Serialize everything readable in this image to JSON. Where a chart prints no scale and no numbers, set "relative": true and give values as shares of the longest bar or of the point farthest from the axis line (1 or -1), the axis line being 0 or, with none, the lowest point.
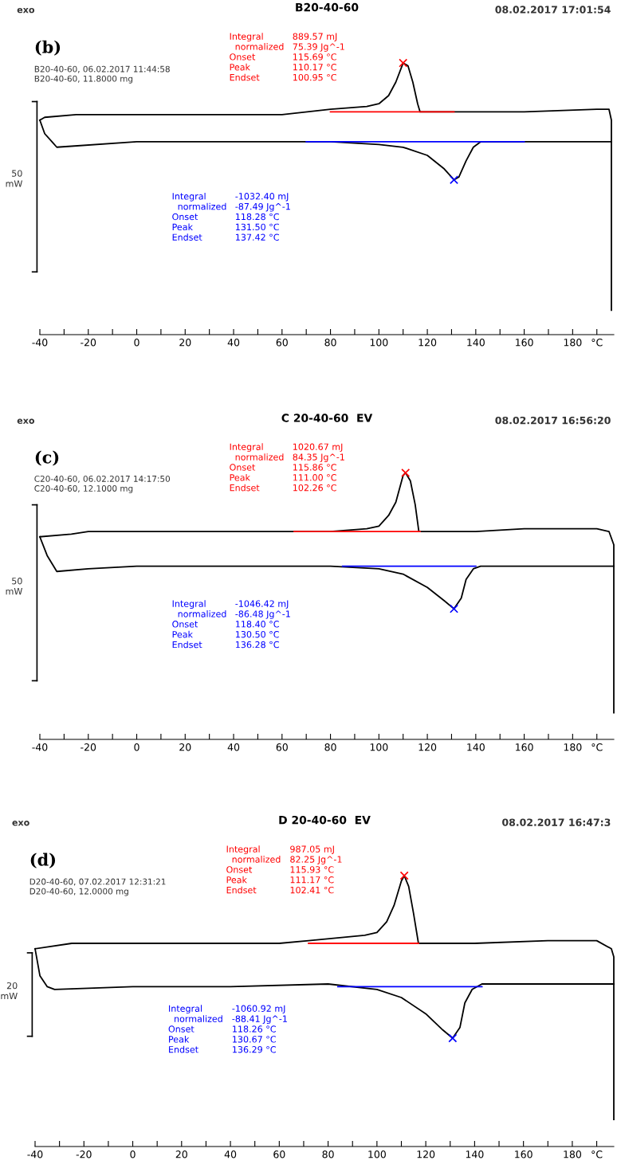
{
  "chart_data": [
    {
      "type": "line",
      "title": "B20-40-60",
      "subtitle": "(b)",
      "relative": true,
      "legend": false,
      "grid": false,
      "xlim": [
        -40,
        197
      ],
      "xticks": [
        -40,
        {
          "value": -30,
          "label": null
        },
        -20,
        {
          "value": -10,
          "label": null
        },
        0,
        {
          "value": 10,
          "label": null
        },
        20,
        {
          "value": 30,
          "label": null
        },
        40,
        {
          "value": 50,
          "label": null
        },
        60,
        {
          "value": 70,
          "label": null
        },
        80,
        {
          "value": 90,
          "label": null
        },
        100,
        {
          "value": 110,
          "label": null
        },
        120,
        {
          "value": 130,
          "label": null
        },
        140,
        {
          "value": 150,
          "label": null
        },
        160,
        {
          "value": 170,
          "label": null
        },
        180,
        {
          "value": 190,
          "label": "°C"
        }
      ],
      "annotations": [
        "exo",
        "08.02.2017 17:01:54",
        "B20-40-60, 06.02.2017 11:44:58\nB20-40-60, 11.8000 mg",
        "Integral\n  normalized\nOnset\nPeak\nEndset",
        "889.57 mJ\n75.39 Jg^-1\n115.69 °C\n110.17 °C\n100.95 °C",
        "Integral\n  normalized\nOnset\nPeak\nEndset",
        "-1032.40 mJ\n-87.49 Jg^-1\n118.28 °C\n131.50 °C\n137.42 °C",
        "50\nmW"
      ],
      "series": [
        {
          "color": "#000000",
          "x": [
            -40,
            -38,
            -25,
            0,
            40,
            60,
            80,
            95,
            100,
            104,
            107,
            110,
            112,
            114,
            116,
            117,
            130,
            160,
            190,
            195,
            196,
            196
          ],
          "values": [
            0.79,
            0.8,
            0.81,
            0.81,
            0.81,
            0.81,
            0.83,
            0.84,
            0.85,
            0.88,
            0.93,
            1.0,
            0.99,
            0.93,
            0.85,
            0.82,
            0.82,
            0.82,
            0.83,
            0.83,
            0.79,
            0.09
          ]
        },
        {
          "color": "#000000",
          "x": [
            -40,
            -38,
            -35,
            -33,
            0,
            40,
            80,
            100,
            110,
            120,
            127,
            131,
            133,
            136,
            139,
            142,
            196
          ],
          "values": [
            0.79,
            0.74,
            0.71,
            0.69,
            0.71,
            0.71,
            0.71,
            0.7,
            0.69,
            0.66,
            0.61,
            0.57,
            0.58,
            0.64,
            0.69,
            0.71,
            0.71
          ]
        },
        {
          "color": "#ff0000",
          "x": [
            80,
            131
          ],
          "values": [
            0.82,
            0.82
          ]
        },
        {
          "color": "#0000ff",
          "x": [
            70,
            160
          ],
          "values": [
            0.71,
            0.71
          ]
        },
        {
          "type": "scatter",
          "marker": "cross",
          "color": "#ff0000",
          "x": [
            110
          ],
          "values": [
            1.0
          ]
        },
        {
          "type": "scatter",
          "marker": "cross",
          "color": "#0000ff",
          "x": [
            131
          ],
          "values": [
            0.57
          ]
        }
      ]
    },
    {
      "type": "line",
      "title": "C 20-40-60  EV",
      "subtitle": "(c)",
      "relative": true,
      "legend": false,
      "grid": false,
      "xlim": [
        -40,
        197
      ],
      "xticks": [
        -40,
        {
          "value": -30,
          "label": null
        },
        -20,
        {
          "value": -10,
          "label": null
        },
        0,
        {
          "value": 10,
          "label": null
        },
        20,
        {
          "value": 30,
          "label": null
        },
        40,
        {
          "value": 50,
          "label": null
        },
        60,
        {
          "value": 70,
          "label": null
        },
        80,
        {
          "value": 90,
          "label": null
        },
        100,
        {
          "value": 110,
          "label": null
        },
        120,
        {
          "value": 130,
          "label": null
        },
        140,
        {
          "value": 150,
          "label": null
        },
        160,
        {
          "value": 170,
          "label": null
        },
        180,
        {
          "value": 190,
          "label": "°C"
        }
      ],
      "annotations": [
        "exo",
        "08.02.2017 16:56:20",
        "C20-40-60, 06.02.2017 14:17:50\nC20-40-60, 12.1000 mg",
        "Integral\n  normalized\nOnset\nPeak\nEndset",
        "1020.67 mJ\n84.35 Jg^-1\n115.86 °C\n111.00 °C\n102.26 °C",
        "Integral\n  normalized\nOnset\nPeak\nEndset",
        "-1046.42 mJ\n-86.48 Jg^-1\n118.40 °C\n130.50 °C\n136.28 °C",
        "50\nmW"
      ],
      "series": [
        {
          "color": "#000000",
          "x": [
            -40,
            -27,
            -20,
            40,
            60,
            80,
            95,
            100,
            104,
            107,
            110,
            111,
            113,
            115,
            116.5,
            140,
            160,
            190,
            195,
            197,
            197
          ],
          "values": [
            0.76,
            0.77,
            0.78,
            0.78,
            0.78,
            0.78,
            0.79,
            0.8,
            0.84,
            0.89,
            0.99,
            1.0,
            0.97,
            0.88,
            0.78,
            0.78,
            0.79,
            0.79,
            0.78,
            0.73,
            0.1
          ]
        },
        {
          "color": "#000000",
          "x": [
            -40,
            -37,
            -33,
            -20,
            0,
            40,
            80,
            100,
            110,
            120,
            127,
            131,
            134,
            136,
            139,
            142,
            197
          ],
          "values": [
            0.76,
            0.69,
            0.63,
            0.64,
            0.65,
            0.65,
            0.65,
            0.64,
            0.62,
            0.57,
            0.52,
            0.49,
            0.53,
            0.6,
            0.64,
            0.65,
            0.65
          ]
        },
        {
          "color": "#ff0000",
          "x": [
            65,
            117
          ],
          "values": [
            0.78,
            0.78
          ]
        },
        {
          "color": "#0000ff",
          "x": [
            85,
            140
          ],
          "values": [
            0.65,
            0.65
          ]
        },
        {
          "type": "scatter",
          "marker": "cross",
          "color": "#ff0000",
          "x": [
            111
          ],
          "values": [
            1.0
          ]
        },
        {
          "type": "scatter",
          "marker": "cross",
          "color": "#0000ff",
          "x": [
            131
          ],
          "values": [
            0.49
          ]
        }
      ]
    },
    {
      "type": "line",
      "title": "D 20-40-60  EV",
      "subtitle": "(d)",
      "relative": true,
      "legend": false,
      "grid": false,
      "xlim": [
        -40,
        197
      ],
      "xticks": [
        -40,
        {
          "value": -30,
          "label": null
        },
        -20,
        {
          "value": -10,
          "label": null
        },
        0,
        {
          "value": 10,
          "label": null
        },
        20,
        {
          "value": 30,
          "label": null
        },
        40,
        {
          "value": 50,
          "label": null
        },
        60,
        {
          "value": 70,
          "label": null
        },
        80,
        {
          "value": 90,
          "label": null
        },
        100,
        {
          "value": 110,
          "label": null
        },
        120,
        {
          "value": 130,
          "label": null
        },
        140,
        {
          "value": 150,
          "label": null
        },
        160,
        {
          "value": 170,
          "label": null
        },
        180,
        {
          "value": 190,
          "label": "°C"
        }
      ],
      "annotations": [
        "exo",
        "08.02.2017 16:47:3",
        "D20-40-60, 07.02.2017 12:31:21\nD20-40-60, 12.0000 mg",
        "Integral\n  normalized\nOnset\nPeak\nEndset",
        "987.05 mJ\n82.25 Jg^-1\n115.93 °C\n111.17 °C\n102.41 °C",
        "Integral\n  normalized\nOnset\nPeak\nEndset",
        "-1060.92 mJ\n-88.41 Jg^-1\n118.26 °C\n130.67 °C\n136.29 °C",
        "20\nmW"
      ],
      "series": [
        {
          "color": "#000000",
          "x": [
            -40,
            -25,
            0,
            60,
            72,
            95,
            100,
            104,
            107,
            110,
            111.2,
            113,
            115,
            117,
            140,
            170,
            190,
            196,
            197,
            197
          ],
          "values": [
            0.73,
            0.75,
            0.75,
            0.75,
            0.76,
            0.78,
            0.79,
            0.83,
            0.89,
            0.98,
            1.0,
            0.96,
            0.86,
            0.75,
            0.75,
            0.76,
            0.76,
            0.73,
            0.7,
            0.1
          ]
        },
        {
          "color": "#000000",
          "x": [
            -40,
            -38,
            -35,
            -32,
            0,
            40,
            80,
            100,
            110,
            120,
            127,
            131,
            134,
            136,
            139,
            143,
            197
          ],
          "values": [
            0.73,
            0.63,
            0.59,
            0.58,
            0.59,
            0.59,
            0.6,
            0.58,
            0.55,
            0.49,
            0.43,
            0.4,
            0.44,
            0.53,
            0.58,
            0.6,
            0.6
          ]
        },
        {
          "color": "#ff0000",
          "x": [
            72,
            117
          ],
          "values": [
            0.75,
            0.75
          ]
        },
        {
          "color": "#0000ff",
          "x": [
            84,
            143
          ],
          "values": [
            0.59,
            0.59
          ]
        },
        {
          "type": "scatter",
          "marker": "cross",
          "color": "#ff0000",
          "x": [
            111.2
          ],
          "values": [
            1.0
          ]
        },
        {
          "type": "scatter",
          "marker": "cross",
          "color": "#0000ff",
          "x": [
            131
          ],
          "values": [
            0.4
          ]
        }
      ]
    }
  ]
}
